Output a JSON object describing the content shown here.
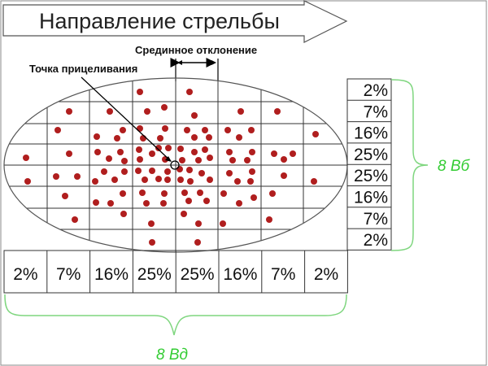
{
  "title": "Направление стрельбы",
  "median_deviation_label": "Срединное отклонение",
  "aim_point_label": "Точка прицеливания",
  "vertical_distribution": [
    "2%",
    "7%",
    "16%",
    "25%",
    "25%",
    "16%",
    "7%",
    "2%"
  ],
  "horizontal_distribution": [
    "2%",
    "7%",
    "16%",
    "25%",
    "25%",
    "16%",
    "7%",
    "2%"
  ],
  "vertical_span_label": "8 Вб",
  "horizontal_span_label": "8 Вд",
  "colors": {
    "dots": "#b01e1e",
    "brace": "#7fd67f",
    "label_green": "#33cc33",
    "lines": "#333333"
  }
}
